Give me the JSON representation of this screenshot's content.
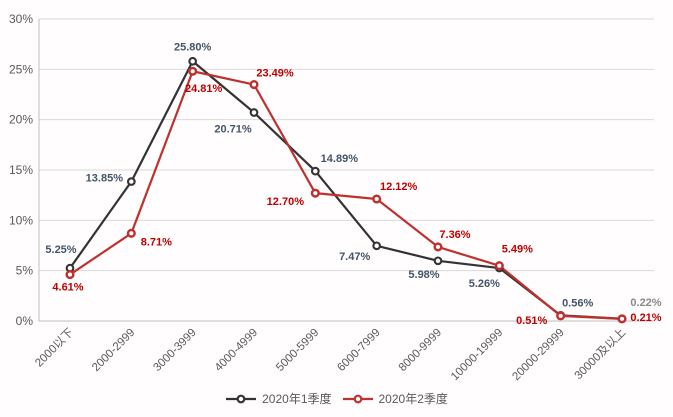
{
  "chart_data": {
    "type": "line",
    "title": "",
    "xlabel": "",
    "ylabel": "",
    "categories": [
      "2000以下",
      "2000-2999",
      "3000-3999",
      "4000-4999",
      "5000-5999",
      "6000-7999",
      "8000-9999",
      "10000-19999",
      "20000-29999",
      "30000及以上"
    ],
    "series": [
      {
        "name": "2020年1季度",
        "color": "#333333",
        "label_color": "#44546a",
        "values": [
          5.25,
          13.85,
          25.8,
          20.71,
          14.89,
          7.47,
          5.98,
          5.26,
          0.56,
          0.22
        ],
        "labels": [
          "5.25%",
          "13.85%",
          "25.80%",
          "20.71%",
          "14.89%",
          "7.47%",
          "5.98%",
          "5.26%",
          "0.56%",
          "0.22%"
        ],
        "label_offsets": [
          [
            -9,
            -19
          ],
          [
            -27,
            -4
          ],
          [
            0,
            -15
          ],
          [
            -21,
            16
          ],
          [
            24,
            -13
          ],
          [
            -22,
            10
          ],
          [
            -14,
            13
          ],
          [
            -15,
            15
          ],
          [
            17,
            -13
          ],
          [
            24,
            -17
          ]
        ],
        "label_color_overrides": {
          "9": "#8a8a8a"
        }
      },
      {
        "name": "2020年2季度",
        "color": "#bf312f",
        "label_color": "#c00000",
        "values": [
          4.61,
          8.71,
          24.81,
          23.49,
          12.7,
          12.12,
          7.36,
          5.49,
          0.51,
          0.21
        ],
        "labels": [
          "4.61%",
          "8.71%",
          "24.81%",
          "23.49%",
          "12.70%",
          "12.12%",
          "7.36%",
          "5.49%",
          "0.51%",
          "0.21%"
        ],
        "label_offsets": [
          [
            -2,
            12
          ],
          [
            25,
            8
          ],
          [
            11,
            17
          ],
          [
            21,
            -12
          ],
          [
            -30,
            8
          ],
          [
            22,
            -13
          ],
          [
            17,
            -13
          ],
          [
            18,
            -17
          ],
          [
            -29,
            4
          ],
          [
            24,
            -2
          ]
        ],
        "label_color_overrides": {}
      }
    ],
    "y_axis": {
      "min": 0,
      "max": 30,
      "step": 5,
      "tick_labels": [
        "0%",
        "5%",
        "10%",
        "15%",
        "20%",
        "25%",
        "30%"
      ]
    },
    "grid": true,
    "legend": {
      "position": "bottom"
    }
  },
  "styles": {
    "background": "#fffdfd",
    "grid_color": "#d9d9d9",
    "axis_line_color": "#bfbfbf",
    "tick_label_color": "#595959",
    "legend_text_color": "#595959"
  }
}
